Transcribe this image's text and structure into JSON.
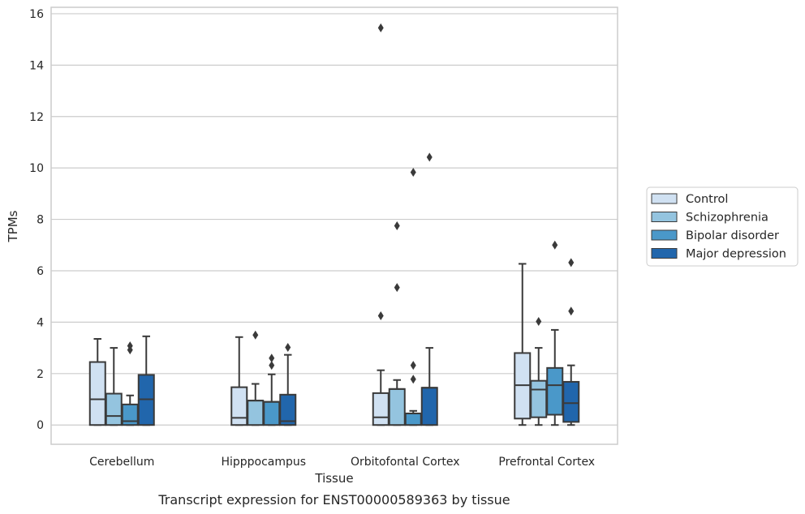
{
  "chart_data": {
    "type": "box",
    "title": "",
    "caption": "Transcript expression for ENST00000589363 by tissue",
    "xlabel": "Tissue",
    "ylabel": "TPMs",
    "ylim": [
      -0.75,
      16.25
    ],
    "yticks": [
      0,
      2,
      4,
      6,
      8,
      10,
      12,
      14,
      16
    ],
    "grid": "horizontal",
    "legend_position": "right",
    "categories": [
      "Cerebellum",
      "Hipppocampus",
      "Orbitofontal Cortex",
      "Prefrontal Cortex"
    ],
    "series": [
      {
        "name": "Control",
        "color": "#d0e1f2",
        "boxes": [
          {
            "whisker_low": 0,
            "q1": 0,
            "median": 1.0,
            "q3": 2.45,
            "whisker_high": 3.35,
            "outliers": []
          },
          {
            "whisker_low": 0,
            "q1": 0,
            "median": 0.28,
            "q3": 1.47,
            "whisker_high": 3.42,
            "outliers": []
          },
          {
            "whisker_low": 0,
            "q1": 0,
            "median": 0.3,
            "q3": 1.24,
            "whisker_high": 2.13,
            "outliers": [
              4.25,
              15.45
            ]
          },
          {
            "whisker_low": 0,
            "q1": 0.25,
            "median": 1.55,
            "q3": 2.8,
            "whisker_high": 6.27,
            "outliers": []
          }
        ]
      },
      {
        "name": "Schizophrenia",
        "color": "#94c4df",
        "boxes": [
          {
            "whisker_low": 0,
            "q1": 0,
            "median": 0.35,
            "q3": 1.22,
            "whisker_high": 3.0,
            "outliers": []
          },
          {
            "whisker_low": 0,
            "q1": 0,
            "median": 0.95,
            "q3": 0.95,
            "whisker_high": 1.6,
            "outliers": [
              3.5
            ]
          },
          {
            "whisker_low": 0,
            "q1": 0,
            "median": 1.4,
            "q3": 1.4,
            "whisker_high": 1.75,
            "outliers": [
              5.35,
              7.75
            ]
          },
          {
            "whisker_low": 0,
            "q1": 0.3,
            "median": 1.38,
            "q3": 1.72,
            "whisker_high": 3.0,
            "outliers": [
              4.03
            ]
          }
        ]
      },
      {
        "name": "Bipolar disorder",
        "color": "#4a98c9",
        "boxes": [
          {
            "whisker_low": 0,
            "q1": 0,
            "median": 0.15,
            "q3": 0.8,
            "whisker_high": 1.15,
            "outliers": [
              2.92,
              3.08
            ]
          },
          {
            "whisker_low": 0,
            "q1": 0,
            "median": 0.9,
            "q3": 0.9,
            "whisker_high": 1.97,
            "outliers": [
              2.32,
              2.6
            ]
          },
          {
            "whisker_low": 0,
            "q1": 0,
            "median": 0.45,
            "q3": 0.45,
            "whisker_high": 0.55,
            "outliers": [
              1.78,
              2.32,
              9.83
            ]
          },
          {
            "whisker_low": 0,
            "q1": 0.4,
            "median": 1.55,
            "q3": 2.22,
            "whisker_high": 3.7,
            "outliers": [
              7.0
            ]
          }
        ]
      },
      {
        "name": "Major depression",
        "color": "#2166ac",
        "boxes": [
          {
            "whisker_low": 0,
            "q1": 0,
            "median": 1.0,
            "q3": 1.95,
            "whisker_high": 3.45,
            "outliers": []
          },
          {
            "whisker_low": 0,
            "q1": 0,
            "median": 0.15,
            "q3": 1.18,
            "whisker_high": 2.73,
            "outliers": [
              3.02
            ]
          },
          {
            "whisker_low": 0,
            "q1": 0,
            "median": 1.45,
            "q3": 1.45,
            "whisker_high": 3.0,
            "outliers": [
              10.42
            ]
          },
          {
            "whisker_low": 0,
            "q1": 0.12,
            "median": 0.85,
            "q3": 1.68,
            "whisker_high": 2.32,
            "outliers": [
              4.43,
              6.32
            ]
          }
        ]
      }
    ]
  }
}
